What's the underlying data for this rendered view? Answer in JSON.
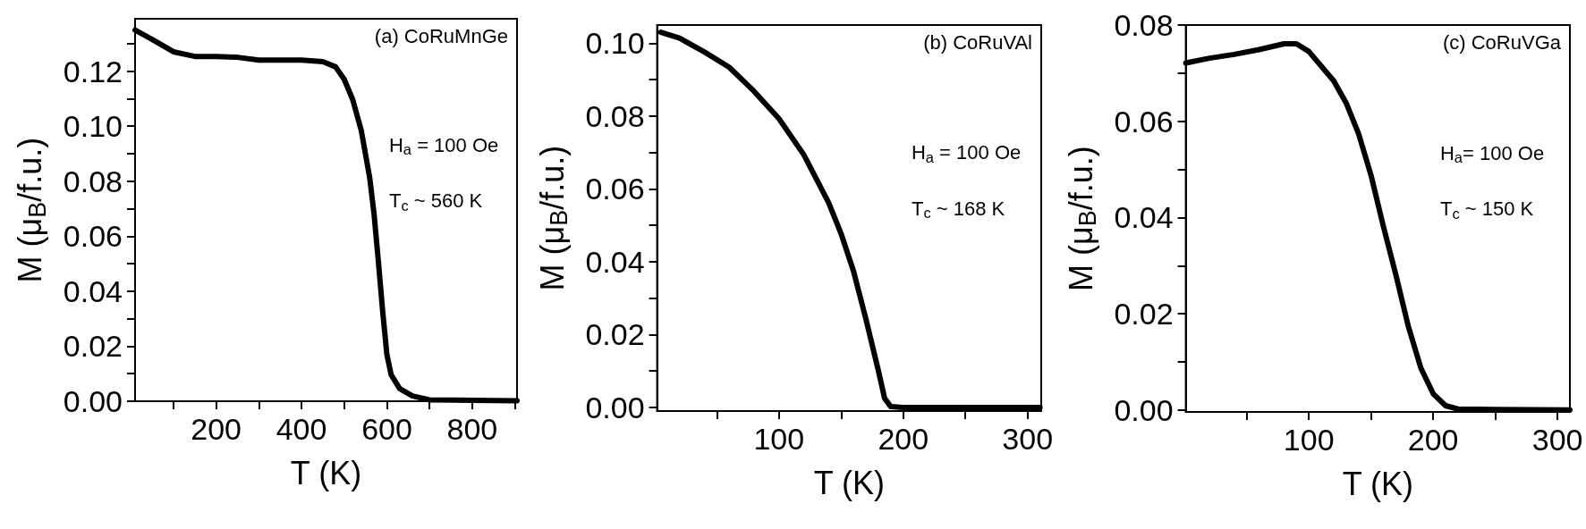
{
  "chart_data": [
    {
      "type": "line",
      "xlabel": "T (K)",
      "ylabel": "M (μ$_{B}$/f.u.)",
      "annotations": [
        "(a) CoRuMnGe",
        "H$_{a}$ = 100 Oe",
        "T$_{c}$ ~ 560 K"
      ],
      "x": [
        10,
        50,
        100,
        150,
        200,
        250,
        300,
        350,
        400,
        450,
        480,
        500,
        520,
        540,
        560,
        570,
        580,
        590,
        600,
        610,
        630,
        660,
        700,
        800,
        905
      ],
      "series": [
        {
          "color": "#000000",
          "values": [
            0.1349,
            0.1315,
            0.127,
            0.1253,
            0.1253,
            0.125,
            0.124,
            0.124,
            0.124,
            0.1234,
            0.1215,
            0.117,
            0.1096,
            0.0984,
            0.081,
            0.068,
            0.051,
            0.033,
            0.017,
            0.0096,
            0.0046,
            0.0019,
            0.0005,
            0.0003,
            0.0002
          ]
        }
      ],
      "xlim": [
        10,
        905
      ],
      "xticks": [
        {
          "value": 100,
          "label": null
        },
        200,
        {
          "value": 300,
          "label": null
        },
        400,
        {
          "value": 500,
          "label": null
        },
        600,
        {
          "value": 700,
          "label": null
        },
        800,
        {
          "value": 900,
          "label": null
        }
      ],
      "ylim": [
        0,
        0.139
      ],
      "yticks": [
        {
          "value": 0,
          "label": "0.00"
        },
        {
          "value": 0.01,
          "label": null
        },
        {
          "value": 0.02,
          "label": "0.02"
        },
        {
          "value": 0.03,
          "label": null
        },
        {
          "value": 0.04,
          "label": "0.04"
        },
        {
          "value": 0.05,
          "label": null
        },
        {
          "value": 0.06,
          "label": "0.06"
        },
        {
          "value": 0.07,
          "label": null
        },
        {
          "value": 0.08,
          "label": "0.08"
        },
        {
          "value": 0.09,
          "label": null
        },
        {
          "value": 0.1,
          "label": "0.10"
        },
        {
          "value": 0.11,
          "label": null
        },
        {
          "value": 0.12,
          "label": "0.12"
        },
        {
          "value": 0.13,
          "label": null
        }
      ],
      "grid": false
    },
    {
      "type": "line",
      "xlabel": "T (K)",
      "ylabel": "M (μ$_{B}$/f.u.)",
      "annotations": [
        "(b) CoRuVAl",
        "H$_{a}$ = 100 Oe",
        "T$_{c}$ ~ 168 K"
      ],
      "x": [
        5,
        20,
        40,
        60,
        80,
        100,
        120,
        140,
        150,
        160,
        170,
        180,
        185,
        190,
        200,
        250,
        310
      ],
      "series": [
        {
          "color": "#000000",
          "values": [
            0.103,
            0.1014,
            0.0976,
            0.0934,
            0.0868,
            0.0793,
            0.0694,
            0.0562,
            0.0477,
            0.0374,
            0.0242,
            0.0101,
            0.0025,
            0.0002,
            0,
            0,
            0
          ]
        }
      ],
      "xlim": [
        2,
        311
      ],
      "xticks": [
        {
          "value": 50,
          "label": null
        },
        100,
        {
          "value": 150,
          "label": null
        },
        200,
        {
          "value": 250,
          "label": null
        },
        300
      ],
      "ylim": [
        -0.001,
        0.105
      ],
      "yticks": [
        {
          "value": 0,
          "label": "0.00"
        },
        {
          "value": 0.01,
          "label": null
        },
        {
          "value": 0.02,
          "label": "0.02"
        },
        {
          "value": 0.03,
          "label": null
        },
        {
          "value": 0.04,
          "label": "0.04"
        },
        {
          "value": 0.05,
          "label": null
        },
        {
          "value": 0.06,
          "label": "0.06"
        },
        {
          "value": 0.07,
          "label": null
        },
        {
          "value": 0.08,
          "label": "0.08"
        },
        {
          "value": 0.09,
          "label": null
        },
        {
          "value": 0.1,
          "label": "0.10"
        }
      ],
      "grid": false
    },
    {
      "type": "line",
      "xlabel": "T (K)",
      "ylabel": "M (μ$_{B}$/f.u.)",
      "annotations": [
        "(c) CoRuVGa",
        "H$_{a}$= 100 Oe",
        "T$_{c}$ ~ 150 K"
      ],
      "x": [
        1,
        20,
        40,
        60,
        80,
        90,
        100,
        120,
        130,
        140,
        150,
        160,
        170,
        180,
        190,
        200,
        210,
        220,
        250,
        310
      ],
      "series": [
        {
          "color": "#000000",
          "values": [
            0.0721,
            0.0731,
            0.0739,
            0.0749,
            0.0761,
            0.0761,
            0.0745,
            0.0684,
            0.0638,
            0.0574,
            0.0488,
            0.0381,
            0.0281,
            0.0174,
            0.0088,
            0.0034,
            0.0009,
            0.0002,
            0.0001,
            0
          ]
        }
      ],
      "xlim": [
        1,
        310
      ],
      "xticks": [
        {
          "value": 50,
          "label": null
        },
        100,
        {
          "value": 150,
          "label": null
        },
        200,
        {
          "value": 250,
          "label": null
        },
        300
      ],
      "ylim": [
        -0.0004,
        0.08
      ],
      "yticks": [
        {
          "value": 0,
          "label": "0.00"
        },
        {
          "value": 0.01,
          "label": null
        },
        {
          "value": 0.02,
          "label": "0.02"
        },
        {
          "value": 0.03,
          "label": null
        },
        {
          "value": 0.04,
          "label": "0.04"
        },
        {
          "value": 0.05,
          "label": null
        },
        {
          "value": 0.06,
          "label": "0.06"
        },
        {
          "value": 0.07,
          "label": null
        },
        {
          "value": 0.08,
          "label": "0.08"
        }
      ],
      "grid": false
    }
  ]
}
